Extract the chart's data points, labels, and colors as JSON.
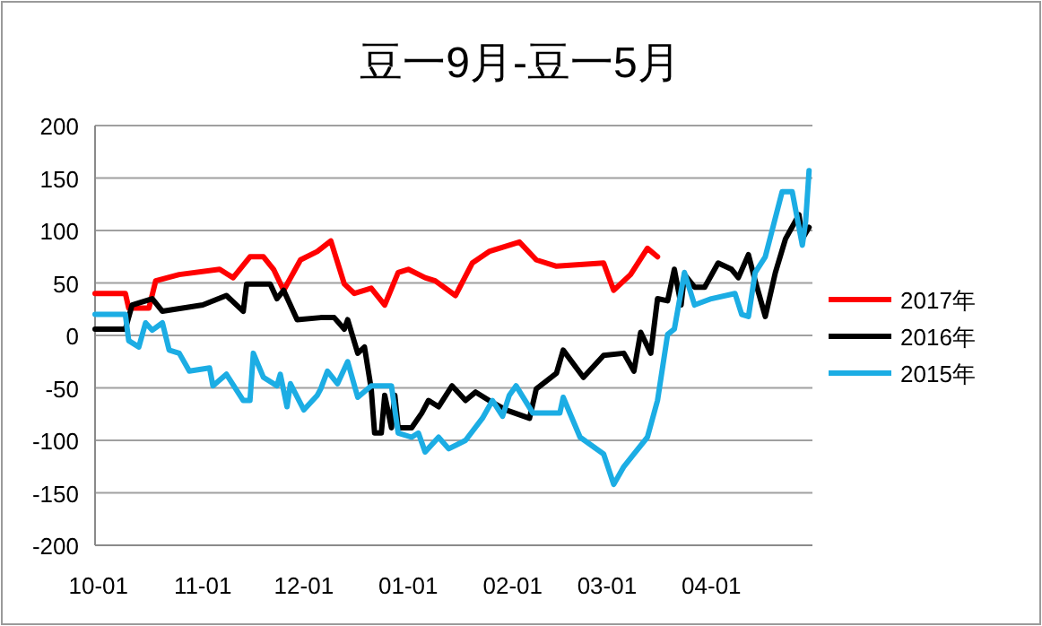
{
  "chart_data": {
    "type": "line",
    "title": "豆一9月-豆一5月",
    "xlim": [
      "2016-09-30",
      "2017-05-01"
    ],
    "xticks": [
      {
        "value": "2016-10-01",
        "label": "10-01"
      },
      {
        "value": "2016-11-01",
        "label": "11-01"
      },
      {
        "value": "2016-12-01",
        "label": "12-01"
      },
      {
        "value": "2017-01-01",
        "label": "01-01"
      },
      {
        "value": "2017-02-01",
        "label": "02-01"
      },
      {
        "value": "2017-03-01",
        "label": "03-01"
      },
      {
        "value": "2017-04-01",
        "label": "04-01"
      }
    ],
    "ylim": [
      -200,
      200
    ],
    "yticks": [
      -200,
      -150,
      -100,
      -50,
      0,
      50,
      100,
      150,
      200
    ],
    "grid": "y",
    "legend": "right",
    "series": [
      {
        "name": "2017年",
        "color": "#ff0000",
        "x": [
          "2016-09-30",
          "2016-10-09",
          "2016-10-10",
          "2016-10-16",
          "2016-10-18",
          "2016-10-25",
          "2016-11-06",
          "2016-11-10",
          "2016-11-15",
          "2016-11-19",
          "2016-11-22",
          "2016-11-25",
          "2016-11-30",
          "2016-12-05",
          "2016-12-09",
          "2016-12-13",
          "2016-12-16",
          "2016-12-21",
          "2016-12-25",
          "2016-12-29",
          "2017-01-01",
          "2017-01-06",
          "2017-01-09",
          "2017-01-15",
          "2017-01-20",
          "2017-01-25",
          "2017-02-03",
          "2017-02-08",
          "2017-02-14",
          "2017-02-28",
          "2017-03-03",
          "2017-03-08",
          "2017-03-13",
          "2017-03-16"
        ],
        "values": [
          40,
          40,
          26,
          26,
          52,
          58,
          63,
          55,
          75,
          75,
          63,
          43,
          72,
          80,
          90,
          49,
          40,
          45,
          29,
          60,
          63,
          55,
          52,
          38,
          69,
          80,
          89,
          72,
          66,
          69,
          43,
          58,
          83,
          75
        ]
      },
      {
        "name": "2016年",
        "color": "#000000",
        "x": [
          "2016-09-30",
          "2016-10-09",
          "2016-10-11",
          "2016-10-17",
          "2016-10-20",
          "2016-11-01",
          "2016-11-08",
          "2016-11-13",
          "2016-11-14",
          "2016-11-21",
          "2016-11-23",
          "2016-11-25",
          "2016-11-29",
          "2016-12-06",
          "2016-12-10",
          "2016-12-13",
          "2016-12-14",
          "2016-12-17",
          "2016-12-19",
          "2016-12-21",
          "2016-12-22",
          "2016-12-24",
          "2016-12-25",
          "2016-12-27",
          "2016-12-28",
          "2016-12-29",
          "2017-01-02",
          "2017-01-05",
          "2017-01-07",
          "2017-01-10",
          "2017-01-14",
          "2017-01-18",
          "2017-01-21",
          "2017-01-25",
          "2017-01-30",
          "2017-02-06",
          "2017-02-08",
          "2017-02-14",
          "2017-02-16",
          "2017-02-22",
          "2017-02-28",
          "2017-03-06",
          "2017-03-09",
          "2017-03-11",
          "2017-03-14",
          "2017-03-16",
          "2017-03-19",
          "2017-03-21",
          "2017-03-23",
          "2017-03-24",
          "2017-03-27",
          "2017-03-30",
          "2017-04-03",
          "2017-04-07",
          "2017-04-09",
          "2017-04-12",
          "2017-04-14",
          "2017-04-17",
          "2017-04-20",
          "2017-04-23",
          "2017-04-27",
          "2017-04-28",
          "2017-04-30"
        ],
        "values": [
          6,
          6,
          29,
          35,
          23,
          29,
          38,
          23,
          49,
          49,
          35,
          43,
          15,
          17,
          17,
          6,
          15,
          -17,
          -11,
          -51,
          -93,
          -93,
          -57,
          -88,
          -57,
          -88,
          -88,
          -74,
          -62,
          -68,
          -48,
          -62,
          -54,
          -62,
          -71,
          -79,
          -51,
          -36,
          -14,
          -40,
          -19,
          -17,
          -34,
          3,
          -17,
          35,
          33,
          63,
          29,
          58,
          46,
          46,
          69,
          63,
          55,
          77,
          52,
          18,
          60,
          92,
          115,
          92,
          103
        ]
      },
      {
        "name": "2015年",
        "color": "#1cade4",
        "x": [
          "2016-09-30",
          "2016-10-09",
          "2016-10-10",
          "2016-10-13",
          "2016-10-15",
          "2016-10-17",
          "2016-10-20",
          "2016-10-22",
          "2016-10-25",
          "2016-10-28",
          "2016-11-03",
          "2016-11-04",
          "2016-11-08",
          "2016-11-13",
          "2016-11-15",
          "2016-11-16",
          "2016-11-19",
          "2016-11-23",
          "2016-11-24",
          "2016-11-26",
          "2016-11-27",
          "2016-12-01",
          "2016-12-05",
          "2016-12-06",
          "2016-12-08",
          "2016-12-11",
          "2016-12-14",
          "2016-12-17",
          "2016-12-21",
          "2016-12-27",
          "2016-12-29",
          "2017-01-02",
          "2017-01-04",
          "2017-01-06",
          "2017-01-10",
          "2017-01-13",
          "2017-01-18",
          "2017-01-23",
          "2017-01-26",
          "2017-01-29",
          "2017-01-31",
          "2017-02-02",
          "2017-02-07",
          "2017-02-15",
          "2017-02-16",
          "2017-02-21",
          "2017-02-28",
          "2017-03-03",
          "2017-03-06",
          "2017-03-13",
          "2017-03-16",
          "2017-03-19",
          "2017-03-21",
          "2017-03-24",
          "2017-03-27",
          "2017-04-01",
          "2017-04-08",
          "2017-04-10",
          "2017-04-12",
          "2017-04-14",
          "2017-04-17",
          "2017-04-22",
          "2017-04-25",
          "2017-04-28",
          "2017-04-29",
          "2017-04-30"
        ],
        "values": [
          20,
          20,
          -5,
          -11,
          12,
          5,
          12,
          -14,
          -17,
          -34,
          -31,
          -48,
          -37,
          -62,
          -62,
          -17,
          -40,
          -48,
          -37,
          -68,
          -46,
          -71,
          -57,
          -51,
          -34,
          -46,
          -25,
          -59,
          -48,
          -48,
          -93,
          -97,
          -93,
          -111,
          -97,
          -108,
          -100,
          -79,
          -62,
          -77,
          -57,
          -48,
          -74,
          -74,
          -59,
          -97,
          -113,
          -142,
          -125,
          -97,
          -62,
          1,
          6,
          60,
          29,
          35,
          40,
          20,
          18,
          60,
          75,
          137,
          137,
          86,
          109,
          157
        ]
      }
    ]
  }
}
